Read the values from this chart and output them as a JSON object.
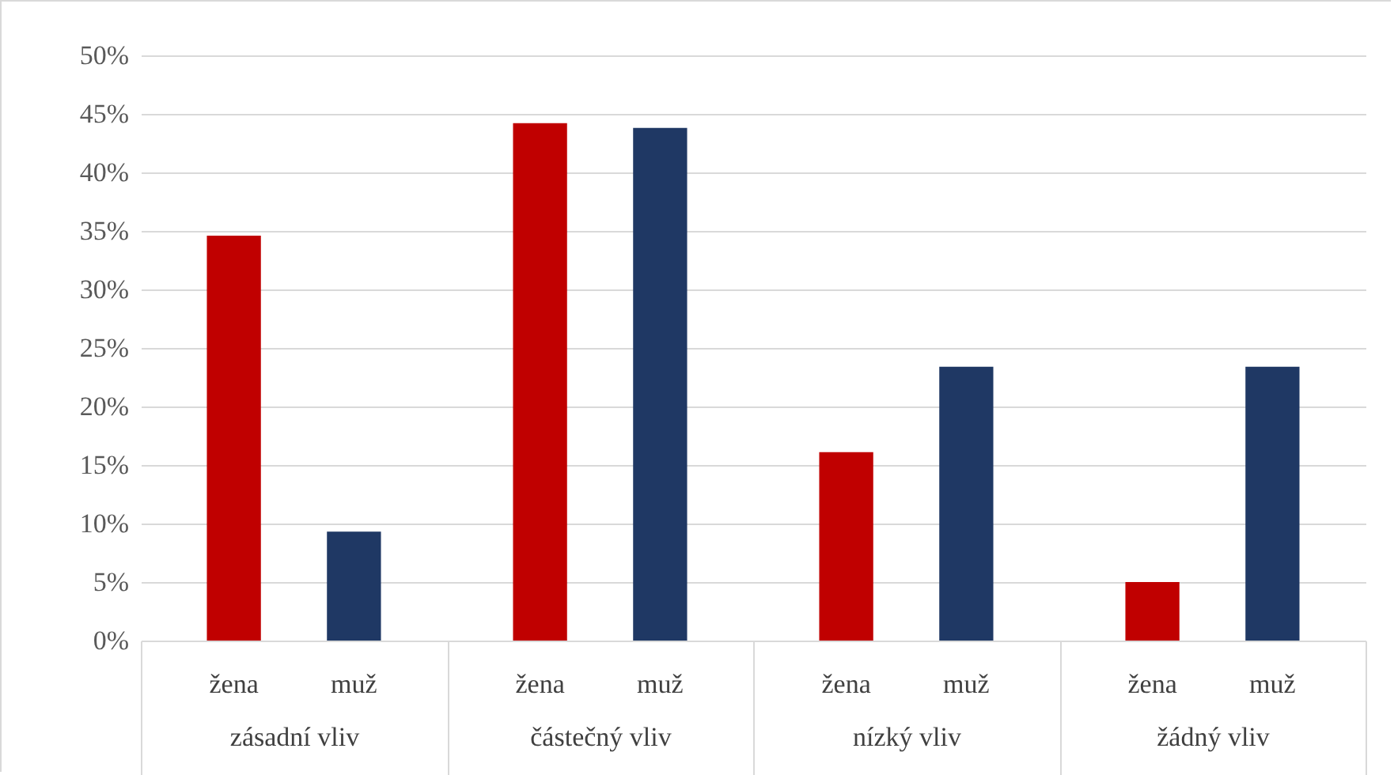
{
  "chart_data": {
    "type": "bar",
    "categories": [
      "zásadní vliv",
      "částečný vliv",
      "nízký vliv",
      "žádný vliv"
    ],
    "series": [
      {
        "name": "žena",
        "color": "#c00000",
        "values": [
          34.6,
          44.2,
          16.1,
          5.0
        ]
      },
      {
        "name": "muž",
        "color": "#1f3864",
        "values": [
          9.3,
          43.8,
          23.4,
          23.4
        ]
      }
    ],
    "ylim": [
      0,
      50
    ],
    "yticks": [
      {
        "value": 0,
        "label": "0%"
      },
      {
        "value": 5,
        "label": "5%"
      },
      {
        "value": 10,
        "label": "10%"
      },
      {
        "value": 15,
        "label": "15%"
      },
      {
        "value": 20,
        "label": "20%"
      },
      {
        "value": 25,
        "label": "25%"
      },
      {
        "value": 30,
        "label": "30%"
      },
      {
        "value": 35,
        "label": "35%"
      },
      {
        "value": 40,
        "label": "40%"
      },
      {
        "value": 45,
        "label": "45%"
      },
      {
        "value": 50,
        "label": "50%"
      }
    ],
    "grid": "y"
  }
}
